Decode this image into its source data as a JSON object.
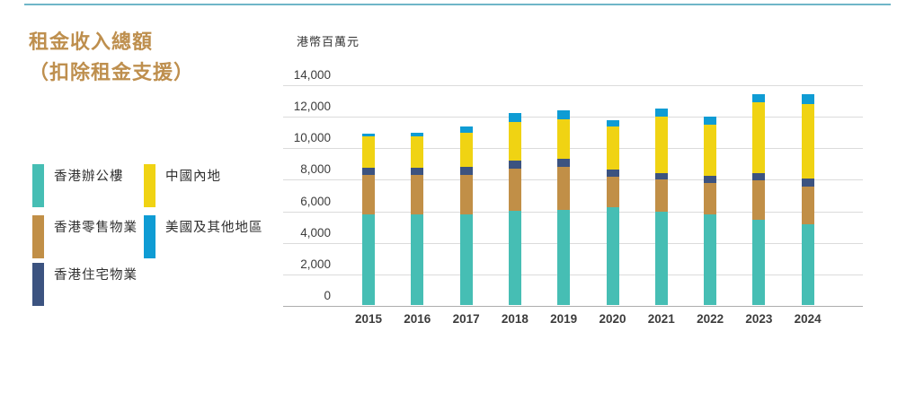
{
  "page": {
    "title_line1": "租金收入總額",
    "title_line2": "（扣除租金支援）",
    "title_color": "#be8f4e",
    "divider_color": "#6fb6c8"
  },
  "chart_data": {
    "type": "bar",
    "stacked": true,
    "unit_label": "港幣百萬元",
    "ylabel": "港幣百萬元",
    "xlabel": "",
    "categories": [
      "2015",
      "2016",
      "2017",
      "2018",
      "2019",
      "2020",
      "2021",
      "2022",
      "2023",
      "2024"
    ],
    "series": [
      {
        "name": "香港辦公樓",
        "color": "#46beb4",
        "values": [
          5750,
          5775,
          5775,
          6000,
          6050,
          6200,
          5900,
          5725,
          5425,
          5150
        ]
      },
      {
        "name": "香港零售物業",
        "color": "#c18f47",
        "values": [
          2475,
          2500,
          2500,
          2675,
          2700,
          1950,
          2050,
          2000,
          2475,
          2350
        ]
      },
      {
        "name": "香港住宅物業",
        "color": "#3c5380",
        "values": [
          475,
          425,
          475,
          475,
          500,
          450,
          425,
          475,
          475,
          500
        ]
      },
      {
        "name": "中國內地",
        "color": "#f0d313",
        "values": [
          2000,
          2025,
          2150,
          2475,
          2550,
          2725,
          3550,
          3250,
          4475,
          4725
        ]
      },
      {
        "name": "美國及其他地區",
        "color": "#0f9cd4",
        "values": [
          200,
          175,
          450,
          550,
          575,
          375,
          525,
          475,
          525,
          625
        ]
      }
    ],
    "totals": [
      10900,
      10900,
      11350,
      12175,
      12375,
      11700,
      12450,
      11925,
      13375,
      13350
    ],
    "ylim": [
      0,
      14000
    ],
    "yticks": [
      {
        "value": 0,
        "label": "0"
      },
      {
        "value": 2000,
        "label": "2,000"
      },
      {
        "value": 4000,
        "label": "4,000"
      },
      {
        "value": 6000,
        "label": "6,000"
      },
      {
        "value": 8000,
        "label": "8,000"
      },
      {
        "value": 10000,
        "label": "10,000"
      },
      {
        "value": 12000,
        "label": "12,000"
      },
      {
        "value": 14000,
        "label": "14,000"
      }
    ],
    "grid": true,
    "legend_position": "left"
  }
}
